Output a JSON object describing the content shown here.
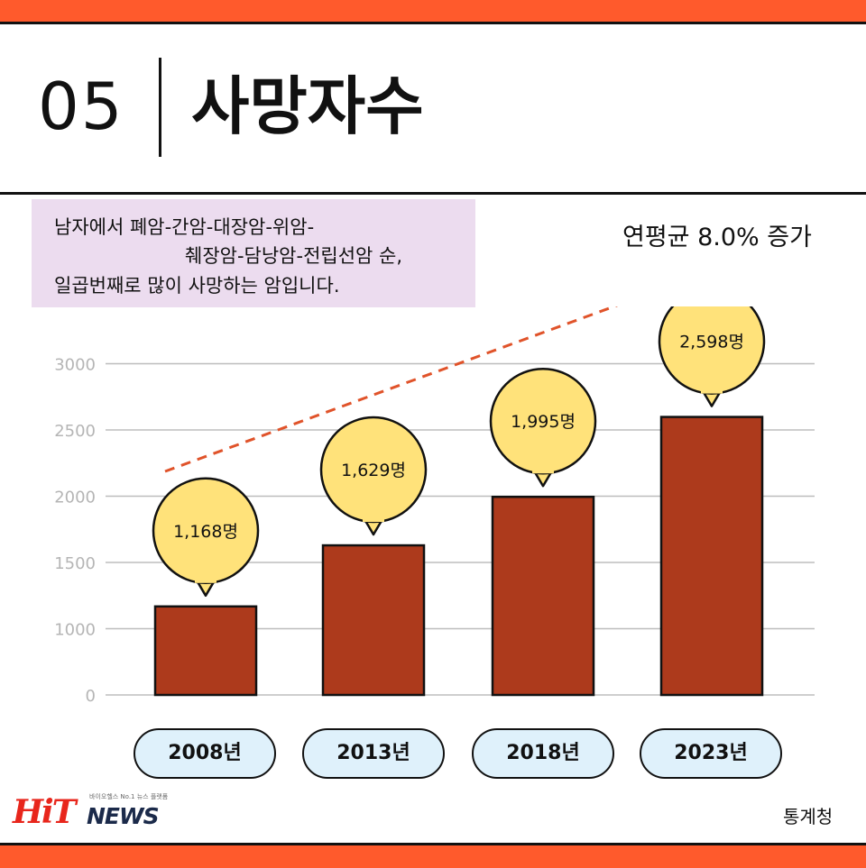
{
  "header": {
    "number": "05",
    "title": "사망자수"
  },
  "note": {
    "line1": "남자에서 폐암-간암-대장암-위암-",
    "line2": "췌장암-담낭암-전립선암 순,",
    "line3": "일곱번째로 많이 사망하는 암입니다."
  },
  "growth_label": "연평균 8.0% 증가",
  "source": "통계청",
  "logo": {
    "hit": "HiT",
    "news": "NEWS",
    "tagline": "바이오헬스 No.1 뉴스 플랫폼"
  },
  "colors": {
    "accent": "#ff5a2c",
    "bar": "#ad3a1c",
    "bubble": "#ffe27a",
    "year_pill": "#dff1fb",
    "note_bg": "#ecdcef",
    "trend": "#e0532a"
  },
  "chart_data": {
    "type": "bar",
    "categories": [
      "2008년",
      "2013년",
      "2018년",
      "2023년"
    ],
    "values": [
      1168,
      1629,
      1995,
      2598
    ],
    "value_labels": [
      "1,168명",
      "1,629명",
      "1,995명",
      "2,598명"
    ],
    "yticks": [
      "0",
      "1000",
      "1500",
      "2000",
      "2500",
      "3000"
    ],
    "ylim": [
      0,
      3000
    ],
    "grid": true,
    "trend_arrow": true
  }
}
